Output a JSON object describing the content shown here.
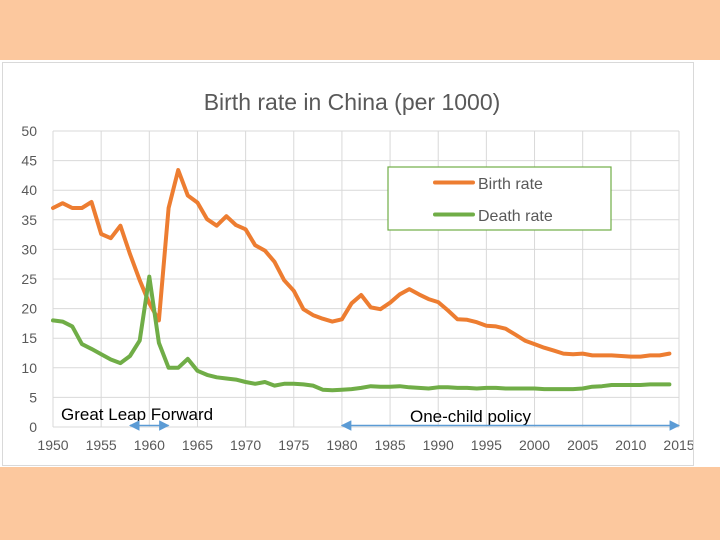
{
  "chart_data": {
    "type": "line",
    "title": "Birth rate in China (per 1000)",
    "xlabel": "",
    "ylabel": "",
    "xlim": [
      1950,
      2015
    ],
    "ylim": [
      0,
      50
    ],
    "x_ticks": [
      1950,
      1955,
      1960,
      1965,
      1970,
      1975,
      1980,
      1985,
      1990,
      1995,
      2000,
      2005,
      2010,
      2015
    ],
    "y_ticks": [
      0,
      5,
      10,
      15,
      20,
      25,
      30,
      35,
      40,
      45,
      50
    ],
    "grid": true,
    "legend_position": "top-right",
    "series": [
      {
        "name": "Birth rate",
        "color": "#ed7d31",
        "x": [
          1950,
          1951,
          1952,
          1953,
          1954,
          1955,
          1956,
          1957,
          1958,
          1959,
          1960,
          1961,
          1962,
          1963,
          1964,
          1965,
          1966,
          1967,
          1968,
          1969,
          1970,
          1971,
          1972,
          1973,
          1974,
          1975,
          1976,
          1977,
          1978,
          1979,
          1980,
          1981,
          1982,
          1983,
          1984,
          1985,
          1986,
          1987,
          1988,
          1989,
          1990,
          1991,
          1992,
          1993,
          1994,
          1995,
          1996,
          1997,
          1998,
          1999,
          2000,
          2001,
          2002,
          2003,
          2004,
          2005,
          2006,
          2007,
          2008,
          2009,
          2010,
          2011,
          2012,
          2013,
          2014
        ],
        "values": [
          37.0,
          37.8,
          37.0,
          37.0,
          38.0,
          32.6,
          31.9,
          34.0,
          29.2,
          24.8,
          20.9,
          18.0,
          37.0,
          43.4,
          39.1,
          37.9,
          35.1,
          34.0,
          35.6,
          34.1,
          33.4,
          30.7,
          29.8,
          27.9,
          24.8,
          23.0,
          19.9,
          18.9,
          18.3,
          17.8,
          18.2,
          20.9,
          22.3,
          20.2,
          19.9,
          21.0,
          22.4,
          23.3,
          22.4,
          21.6,
          21.1,
          19.7,
          18.2,
          18.1,
          17.7,
          17.1,
          17.0,
          16.6,
          15.6,
          14.6,
          14.0,
          13.4,
          12.9,
          12.4,
          12.3,
          12.4,
          12.1,
          12.1,
          12.1,
          12.0,
          11.9,
          11.9,
          12.1,
          12.1,
          12.4
        ]
      },
      {
        "name": "Death rate",
        "color": "#70ad47",
        "x": [
          1950,
          1951,
          1952,
          1953,
          1954,
          1955,
          1956,
          1957,
          1958,
          1959,
          1960,
          1961,
          1962,
          1963,
          1964,
          1965,
          1966,
          1967,
          1968,
          1969,
          1970,
          1971,
          1972,
          1973,
          1974,
          1975,
          1976,
          1977,
          1978,
          1979,
          1980,
          1981,
          1982,
          1983,
          1984,
          1985,
          1986,
          1987,
          1988,
          1989,
          1990,
          1991,
          1992,
          1993,
          1994,
          1995,
          1996,
          1997,
          1998,
          1999,
          2000,
          2001,
          2002,
          2003,
          2004,
          2005,
          2006,
          2007,
          2008,
          2009,
          2010,
          2011,
          2012,
          2013,
          2014
        ],
        "values": [
          18.0,
          17.8,
          17.0,
          14.0,
          13.2,
          12.3,
          11.4,
          10.8,
          12.0,
          14.6,
          25.4,
          14.2,
          10.0,
          10.0,
          11.5,
          9.5,
          8.8,
          8.4,
          8.2,
          8.0,
          7.6,
          7.3,
          7.6,
          7.0,
          7.3,
          7.3,
          7.2,
          7.0,
          6.3,
          6.2,
          6.3,
          6.4,
          6.6,
          6.9,
          6.8,
          6.8,
          6.9,
          6.7,
          6.6,
          6.5,
          6.7,
          6.7,
          6.6,
          6.6,
          6.5,
          6.6,
          6.6,
          6.5,
          6.5,
          6.5,
          6.5,
          6.4,
          6.4,
          6.4,
          6.4,
          6.5,
          6.8,
          6.9,
          7.1,
          7.1,
          7.1,
          7.1,
          7.2,
          7.2,
          7.2
        ]
      }
    ],
    "annotations": [
      {
        "text": "Great Leap Forward",
        "x_start": 1958,
        "x_end": 1962
      },
      {
        "text": "One-child policy",
        "x_start": 1980,
        "x_end": 2015
      }
    ]
  },
  "style": {
    "axis_text_color": "#595959",
    "grid_color": "#d9d9d9",
    "legend_border_color": "#70ad47",
    "arrow_color": "#5b9bd5",
    "annotation_text_color": "#000000"
  }
}
